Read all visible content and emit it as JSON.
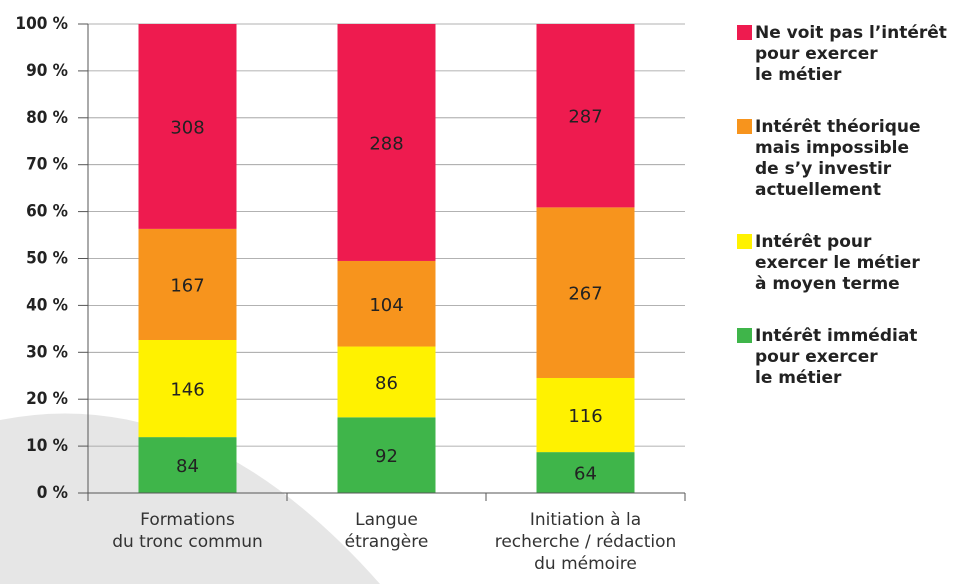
{
  "chart_data": {
    "type": "bar",
    "stacking": "percent",
    "categories": [
      "Formations\ndu tronc commun",
      "Langue\nétrangère",
      "Initiation à la\nrecherche / rédaction\ndu mémoire"
    ],
    "series": [
      {
        "name": "Ne voit pas l’intérêt\npour exercer\nle métier",
        "color": "#ee1b4f",
        "values": [
          308,
          288,
          287
        ]
      },
      {
        "name": "Intérêt théorique\nmais impossible\nde s’y investir\nactuellement",
        "color": "#f7941d",
        "values": [
          167,
          104,
          267
        ]
      },
      {
        "name": "Intérêt pour\nexercer le métier\nà moyen terme",
        "color": "#fff200",
        "values": [
          146,
          86,
          116
        ]
      },
      {
        "name": "Intérêt immédiat\npour exercer\nle métier",
        "color": "#3fb54a",
        "values": [
          84,
          92,
          64
        ]
      }
    ],
    "ylim": [
      0,
      100
    ],
    "yticks": [
      {
        "value": 0,
        "label": "0 %"
      },
      {
        "value": 10,
        "label": "10 %"
      },
      {
        "value": 20,
        "label": "20 %"
      },
      {
        "value": 30,
        "label": "30 %"
      },
      {
        "value": 40,
        "label": "40 %"
      },
      {
        "value": 50,
        "label": "50 %"
      },
      {
        "value": 60,
        "label": "60 %"
      },
      {
        "value": 70,
        "label": "70 %"
      },
      {
        "value": 80,
        "label": "80 %"
      },
      {
        "value": 90,
        "label": "90 %"
      },
      {
        "value": 100,
        "label": "100 %"
      }
    ],
    "grid": true,
    "legend": "right"
  }
}
